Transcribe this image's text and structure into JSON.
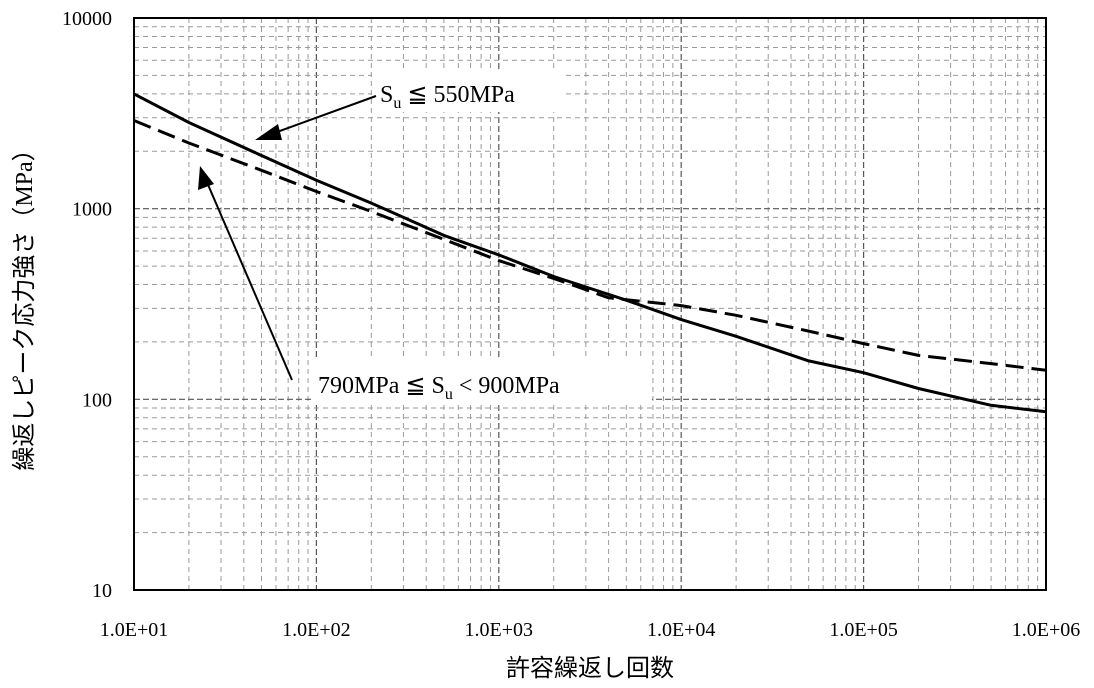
{
  "chart_data": {
    "type": "line",
    "title": "",
    "xlabel": "許容繰返し回数",
    "ylabel": "繰返しピーク応力強さ（MPa）",
    "x_scale": "log",
    "y_scale": "log",
    "xlim": [
      10,
      1000000
    ],
    "ylim": [
      10,
      10000
    ],
    "x_tick_labels": [
      "1.0E+01",
      "1.0E+02",
      "1.0E+03",
      "1.0E+04",
      "1.0E+05",
      "1.0E+06"
    ],
    "y_tick_labels": [
      "10",
      "100",
      "1000",
      "10000"
    ],
    "grid": true,
    "series": [
      {
        "name": "Su ≦ 550MPa",
        "style": "solid",
        "points": [
          [
            10,
            4000
          ],
          [
            20,
            2830
          ],
          [
            50,
            1900
          ],
          [
            100,
            1410
          ],
          [
            200,
            1070
          ],
          [
            500,
            724
          ],
          [
            1000,
            572
          ],
          [
            2000,
            441
          ],
          [
            5000,
            331
          ],
          [
            10000,
            262
          ],
          [
            20000,
            214
          ],
          [
            50000,
            159
          ],
          [
            100000,
            138
          ],
          [
            200000,
            114
          ],
          [
            500000,
            93
          ],
          [
            1000000,
            86
          ]
        ]
      },
      {
        "name": "790MPa ≦ Su < 900MPa",
        "style": "dashed",
        "points": [
          [
            10,
            2900
          ],
          [
            20,
            2210
          ],
          [
            50,
            1590
          ],
          [
            100,
            1230
          ],
          [
            200,
            966
          ],
          [
            500,
            690
          ],
          [
            1000,
            534
          ],
          [
            2000,
            431
          ],
          [
            4000,
            341
          ],
          [
            10000,
            310
          ],
          [
            20000,
            276
          ],
          [
            50000,
            228
          ],
          [
            100000,
            196
          ],
          [
            200000,
            170
          ],
          [
            500000,
            154
          ],
          [
            1000000,
            142
          ]
        ]
      }
    ],
    "annotations": [
      {
        "label": "S",
        "sub": "u",
        "text": " ≦ 550MPa",
        "target_series": 0
      },
      {
        "prefix": "790MPa ≦ ",
        "label": "S",
        "sub": "u",
        "text": " < 900MPa",
        "target_series": 1
      }
    ],
    "colors": {
      "line": "#000000",
      "grid_major": "#555555",
      "grid_minor": "#9a9a9a",
      "frame": "#000000"
    }
  }
}
